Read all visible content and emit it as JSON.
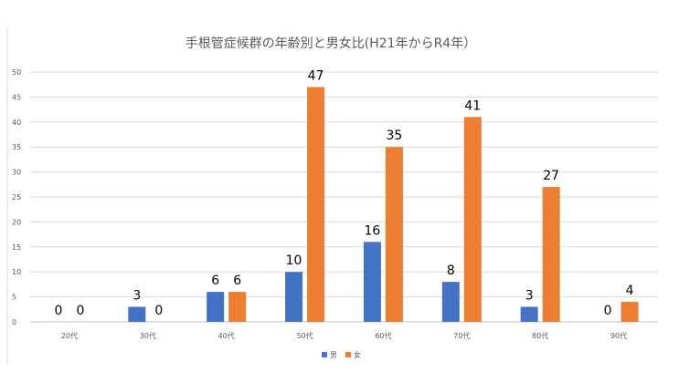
{
  "chart_data": {
    "type": "bar",
    "title": "手根管症候群の年齢別と男女比(H21年からR4年）",
    "categories": [
      "20代",
      "30代",
      "40代",
      "50代",
      "60代",
      "70代",
      "80代",
      "90代"
    ],
    "series": [
      {
        "name": "男",
        "color": "#4472c4",
        "values": [
          0,
          3,
          6,
          10,
          16,
          8,
          3,
          0
        ]
      },
      {
        "name": "女",
        "color": "#ed7d31",
        "values": [
          0,
          0,
          6,
          47,
          35,
          41,
          27,
          4
        ]
      }
    ],
    "ylim": [
      0,
      50
    ],
    "yticks": [
      0,
      5,
      10,
      15,
      20,
      25,
      30,
      35,
      40,
      45,
      50
    ],
    "grid": true,
    "legend_position": "bottom"
  }
}
